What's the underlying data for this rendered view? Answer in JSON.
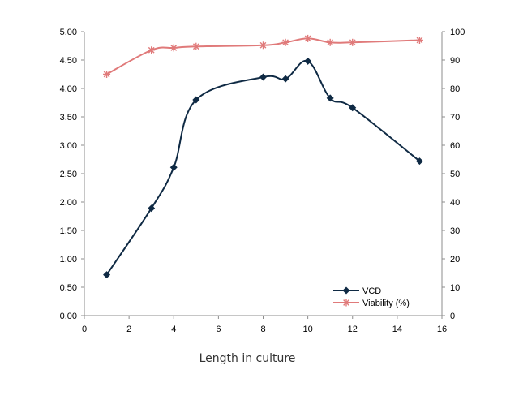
{
  "chart_data": {
    "type": "line",
    "xlabel": "Length in culture",
    "xlim": [
      0,
      16
    ],
    "x_ticks": [
      "0",
      "2",
      "4",
      "6",
      "8",
      "10",
      "12",
      "14",
      "16"
    ],
    "y_left_lim": [
      0,
      5
    ],
    "y_left_ticks": [
      "0.00",
      "0.50",
      "1.00",
      "1.50",
      "2.00",
      "2.50",
      "3.00",
      "3.50",
      "4.00",
      "4.50",
      "5.00"
    ],
    "y_right_lim": [
      0,
      100
    ],
    "y_right_ticks": [
      "0",
      "10",
      "20",
      "30",
      "40",
      "50",
      "60",
      "70",
      "80",
      "90",
      "100"
    ],
    "grid": false,
    "legend_position": "bottom-right",
    "series": [
      {
        "name": "VCD",
        "axis": "left",
        "color": "#0f2a44",
        "marker": "diamond",
        "x": [
          1,
          3,
          4,
          5,
          8,
          9,
          10,
          11,
          12,
          15
        ],
        "y": [
          0.72,
          1.89,
          2.61,
          3.8,
          4.2,
          4.17,
          4.48,
          3.83,
          3.66,
          2.72
        ]
      },
      {
        "name": "Viability (%)",
        "axis": "right",
        "color": "#e07a7a",
        "marker": "star",
        "x": [
          1,
          3,
          4,
          5,
          8,
          9,
          10,
          11,
          12,
          15
        ],
        "y": [
          85,
          93.5,
          94.3,
          94.8,
          95.2,
          96.2,
          97.6,
          96.2,
          96.2,
          97
        ]
      }
    ]
  }
}
